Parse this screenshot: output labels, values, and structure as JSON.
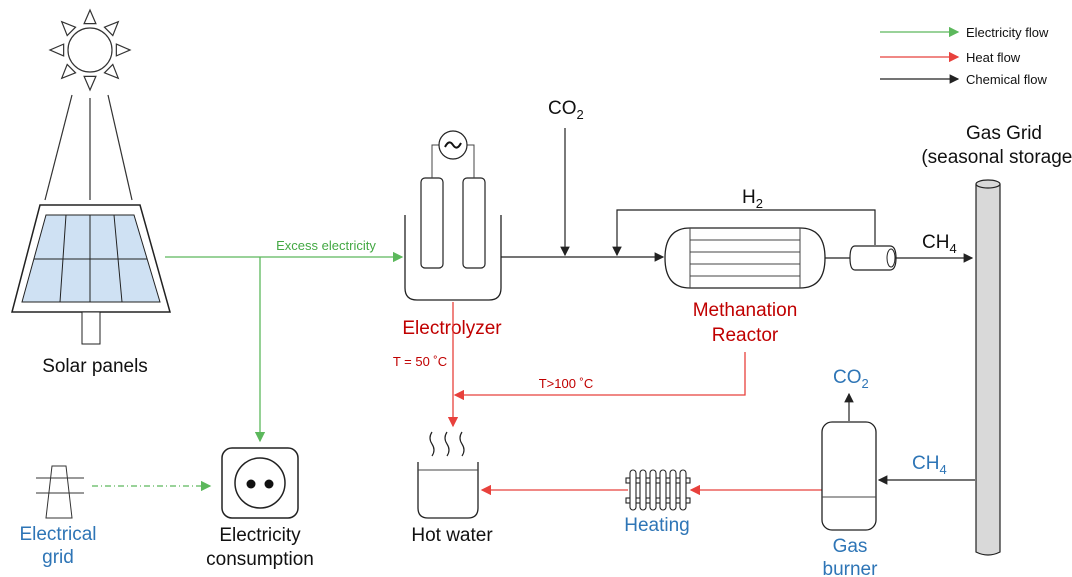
{
  "legend": [
    {
      "label": "Electricity flow"
    },
    {
      "label": "Heat flow"
    },
    {
      "label": "Chemical flow"
    }
  ],
  "nodes": {
    "solar_panels": "Solar panels",
    "electrolyzer": "Electrolyzer",
    "methanation_reactor": [
      "Methanation",
      "Reactor"
    ],
    "gas_grid": [
      "Gas Grid",
      "(seasonal storage)"
    ],
    "hot_water": "Hot water",
    "heating": "Heating",
    "gas_burner": [
      "Gas",
      "burner"
    ],
    "electrical_grid": [
      "Electrical",
      "grid"
    ],
    "electricity_consumption": [
      "Electricity",
      "consumption"
    ]
  },
  "flows": {
    "excess_electricity": "Excess electricity",
    "co2_in": {
      "formula": "CO",
      "subscript": "2"
    },
    "h2": {
      "formula": "H",
      "subscript": "2"
    },
    "ch4_out": {
      "formula": "CH",
      "subscript": "4"
    },
    "t_electrolyzer": "T = 50 ˚C",
    "t_reactor": "T>100 ˚C",
    "co2_exhaust": {
      "formula": "CO",
      "subscript": "2"
    },
    "ch4_in": {
      "formula": "CH",
      "subscript": "4"
    }
  }
}
